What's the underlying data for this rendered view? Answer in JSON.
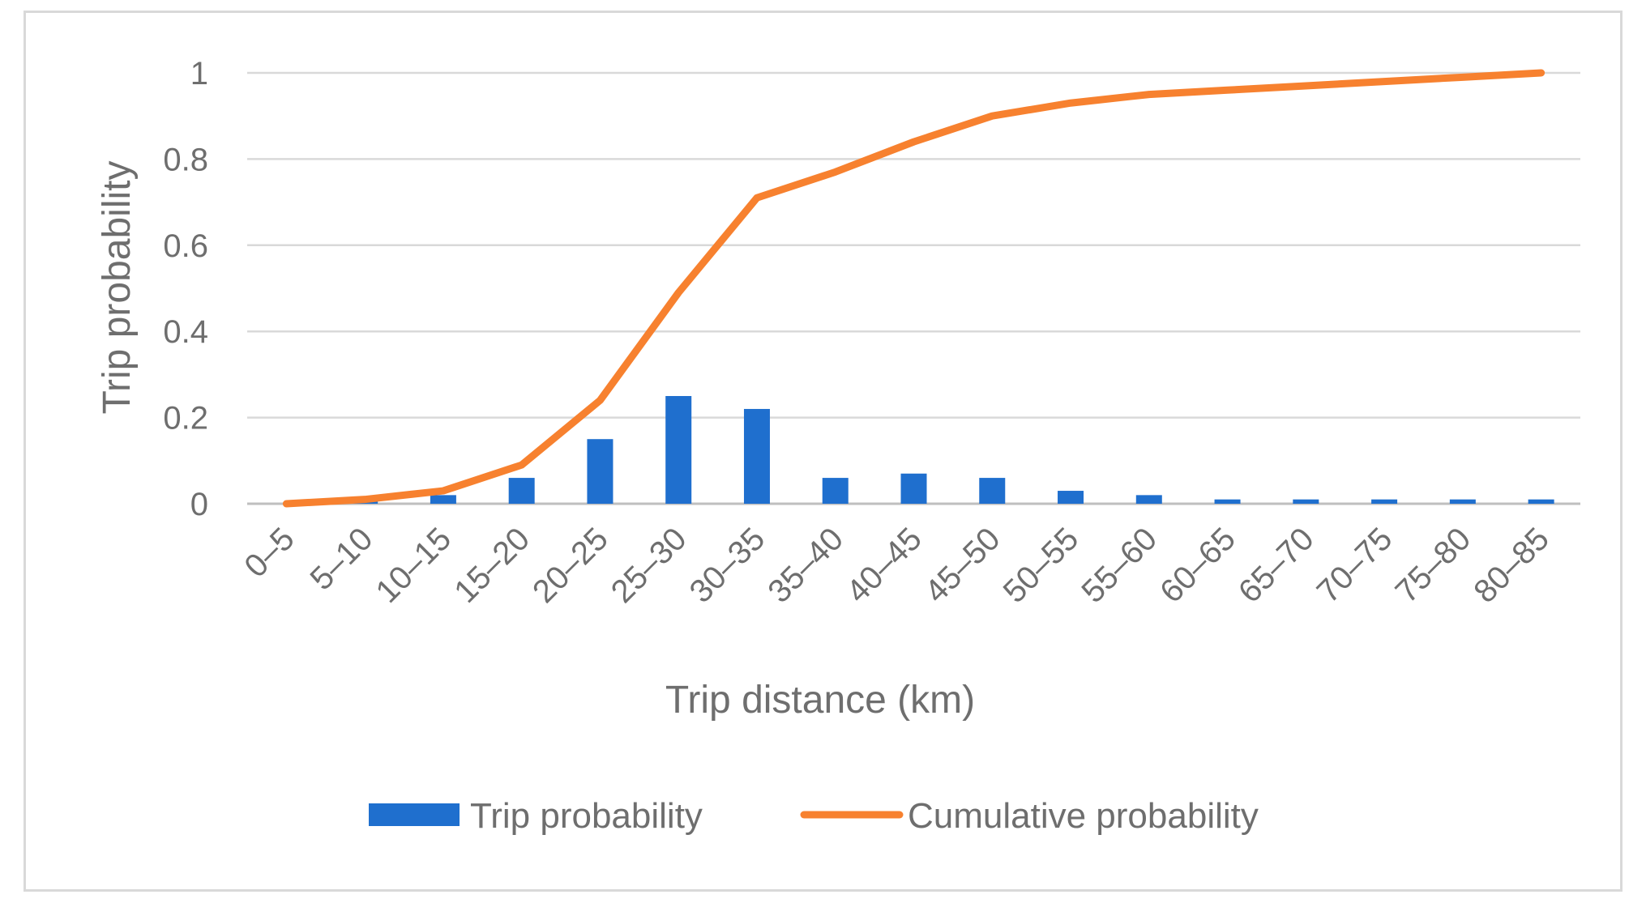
{
  "chart_data": {
    "type": "bar",
    "categories": [
      "0–5",
      "5–10",
      "10–15",
      "15–20",
      "20–25",
      "25–30",
      "30–35",
      "35–40",
      "40–45",
      "45–50",
      "50–55",
      "55–60",
      "60–65",
      "65–70",
      "70–75",
      "75–80",
      "80–85"
    ],
    "series": [
      {
        "name": "Trip probability",
        "type": "bar",
        "color": "#1f6fce",
        "values": [
          0.0,
          0.01,
          0.02,
          0.06,
          0.15,
          0.25,
          0.22,
          0.06,
          0.07,
          0.06,
          0.03,
          0.02,
          0.01,
          0.01,
          0.01,
          0.01,
          0.01
        ]
      },
      {
        "name": "Cumulative probability",
        "type": "line",
        "color": "#f7812f",
        "values": [
          0.0,
          0.01,
          0.03,
          0.09,
          0.24,
          0.49,
          0.71,
          0.77,
          0.84,
          0.9,
          0.93,
          0.95,
          0.96,
          0.97,
          0.98,
          0.99,
          1.0
        ]
      }
    ],
    "xlabel": "Trip distance (km)",
    "ylabel": "Trip probability",
    "ylim": [
      0,
      1
    ],
    "yticks": [
      "0",
      "0.2",
      "0.4",
      "0.6",
      "0.8",
      "1"
    ],
    "grid": true,
    "legend_position": "bottom"
  }
}
